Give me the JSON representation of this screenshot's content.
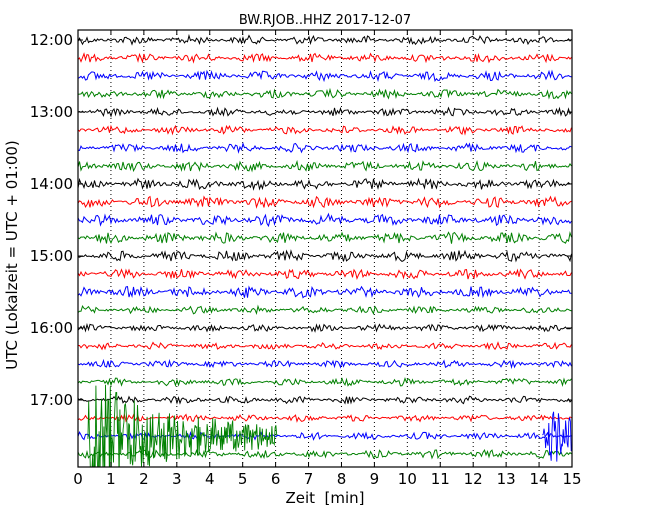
{
  "chart_data": {
    "type": "line",
    "title": "BW.RJOB..HHZ 2017-12-07",
    "xlabel": "Zeit  [min]",
    "ylabel": "UTC (Lokalzeit = UTC + 01:00)",
    "xlim": [
      0,
      15
    ],
    "x_ticks": [
      0,
      1,
      2,
      3,
      4,
      5,
      6,
      7,
      8,
      9,
      10,
      11,
      12,
      13,
      14,
      15
    ],
    "y_tick_labels": [
      "12:00",
      "13:00",
      "14:00",
      "15:00",
      "16:00",
      "17:00"
    ],
    "grid": "vertical dotted at each minute",
    "trace_interval_minutes": 15,
    "color_cycle": [
      "#000000",
      "#ff0000",
      "#0000ff",
      "#008000"
    ],
    "traces": [
      {
        "start": "12:00",
        "color": "#000000",
        "level": 0.35
      },
      {
        "start": "12:15",
        "color": "#ff0000",
        "level": 0.35
      },
      {
        "start": "12:30",
        "color": "#0000ff",
        "level": 0.4
      },
      {
        "start": "12:45",
        "color": "#008000",
        "level": 0.35
      },
      {
        "start": "13:00",
        "color": "#000000",
        "level": 0.3
      },
      {
        "start": "13:15",
        "color": "#ff0000",
        "level": 0.3
      },
      {
        "start": "13:30",
        "color": "#0000ff",
        "level": 0.35
      },
      {
        "start": "13:45",
        "color": "#008000",
        "level": 0.45
      },
      {
        "start": "14:00",
        "color": "#000000",
        "level": 0.5
      },
      {
        "start": "14:15",
        "color": "#ff0000",
        "level": 0.55
      },
      {
        "start": "14:30",
        "color": "#0000ff",
        "level": 0.6
      },
      {
        "start": "14:45",
        "color": "#008000",
        "level": 0.55
      },
      {
        "start": "15:00",
        "color": "#000000",
        "level": 0.5
      },
      {
        "start": "15:15",
        "color": "#ff0000",
        "level": 0.45
      },
      {
        "start": "15:30",
        "color": "#0000ff",
        "level": 0.55
      },
      {
        "start": "15:45",
        "color": "#008000",
        "level": 0.25
      },
      {
        "start": "16:00",
        "color": "#000000",
        "level": 0.2
      },
      {
        "start": "16:15",
        "color": "#ff0000",
        "level": 0.2
      },
      {
        "start": "16:30",
        "color": "#0000ff",
        "level": 0.2
      },
      {
        "start": "16:45",
        "color": "#008000",
        "level": 0.25
      },
      {
        "start": "17:00",
        "color": "#000000",
        "level": 0.25
      },
      {
        "start": "17:15",
        "color": "#ff0000",
        "level": 0.2
      },
      {
        "start": "17:30",
        "color": "#0000ff",
        "level": 0.25
      },
      {
        "start": "17:45",
        "color": "#008000",
        "level": 0.3
      }
    ],
    "events": [
      {
        "trace_start": "17:30",
        "x_min": 0.3,
        "peak_x_min": 0.35,
        "amplitude_rows": 3.9,
        "decay_min": 1.8,
        "color": "#008000"
      },
      {
        "trace_start": "17:30",
        "x_min": 14.1,
        "peak_x_min": 14.4,
        "amplitude_rows": 1.6,
        "decay_min": 1.2,
        "color": "#0000ff"
      }
    ]
  }
}
